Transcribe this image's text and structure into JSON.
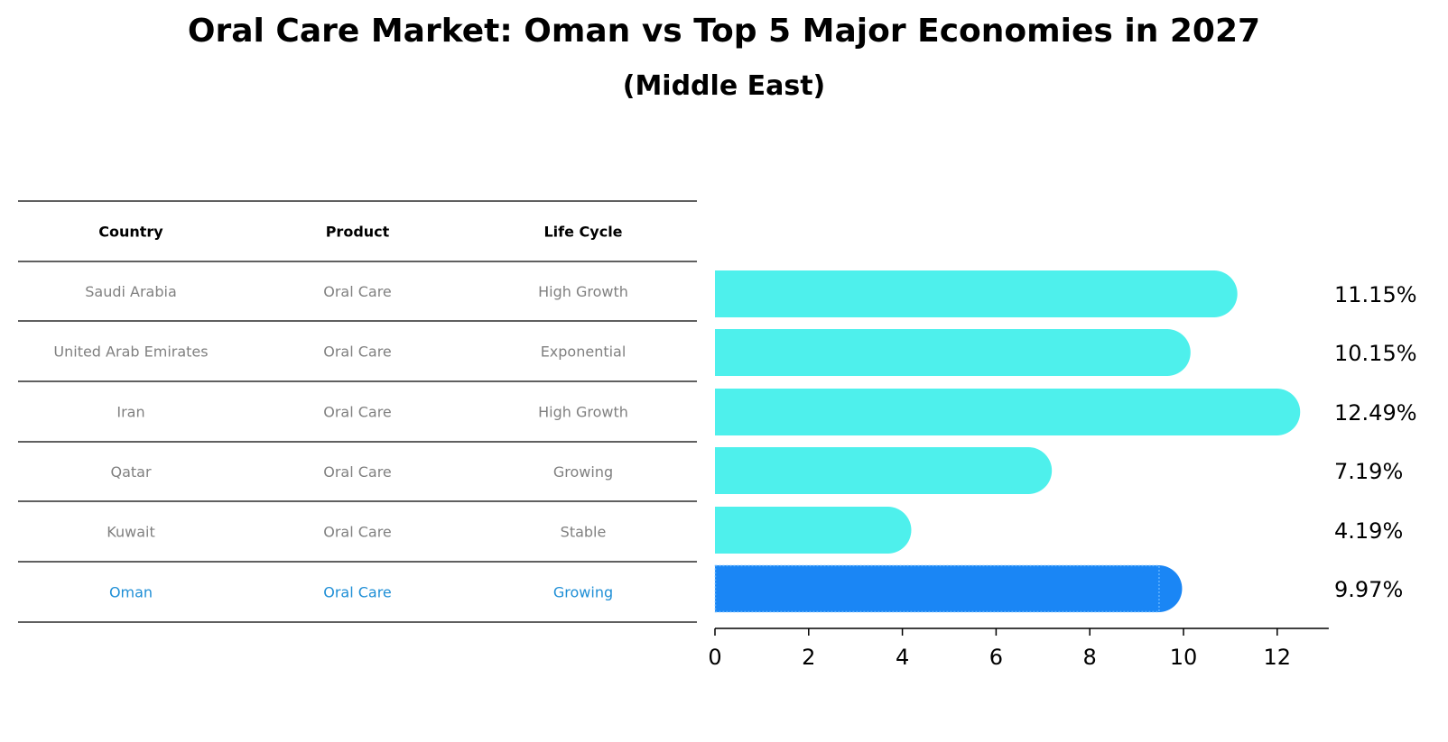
{
  "title": "Oral Care Market: Oman vs Top 5 Major Economies in 2027",
  "subtitle": "(Middle East)",
  "table": {
    "headers": [
      "Country",
      "Product",
      "Life Cycle"
    ],
    "rows": [
      [
        "Saudi Arabia",
        "Oral Care",
        "High Growth"
      ],
      [
        "United Arab Emirates",
        "Oral Care",
        "Exponential"
      ],
      [
        "Iran",
        "Oral Care",
        "High Growth"
      ],
      [
        "Qatar",
        "Oral Care",
        "Growing"
      ],
      [
        "Kuwait",
        "Oral Care",
        "Stable"
      ],
      [
        "Oman",
        "Oral Care",
        "Growing"
      ]
    ],
    "highlight_row": 5
  },
  "colors": {
    "bar": "#4ef0ec",
    "highlight_bar": "#1a86f5",
    "highlight_text": "#1f8fd6",
    "muted_text": "#808080"
  },
  "chart_data": {
    "type": "bar",
    "orientation": "horizontal",
    "categories": [
      "Saudi Arabia",
      "United Arab Emirates",
      "Iran",
      "Qatar",
      "Kuwait",
      "Oman"
    ],
    "values": [
      11.15,
      10.15,
      12.49,
      7.19,
      4.19,
      9.97
    ],
    "value_labels": [
      "11.15%",
      "10.15%",
      "12.49%",
      "7.19%",
      "4.19%",
      "9.97%"
    ],
    "highlight": "Oman",
    "xlim": [
      0,
      13.1
    ],
    "xticks": [
      0,
      2,
      4,
      6,
      8,
      10,
      12
    ],
    "xlabel": "",
    "ylabel": "",
    "grid": false
  }
}
